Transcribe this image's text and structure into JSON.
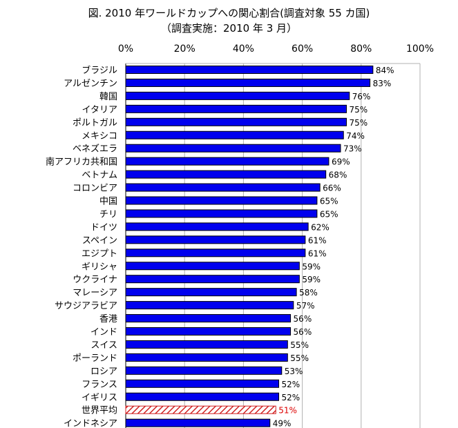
{
  "chart_data": {
    "type": "bar",
    "orientation": "horizontal",
    "title": "図. 2010 年ワールドカップへの関心割合(調査対象 55 カ国)",
    "subtitle": "（調査実施：2010 年 3 月）",
    "xlim": [
      0,
      100
    ],
    "x_ticks": [
      "0%",
      "20%",
      "40%",
      "60%",
      "80%",
      "100%"
    ],
    "axis_position": "top",
    "grid": true,
    "categories": [
      "ブラジル",
      "アルゼンチン",
      "韓国",
      "イタリア",
      "ポルトガル",
      "メキシコ",
      "ベネズエラ",
      "南アフリカ共和国",
      "ベトナム",
      "コロンビア",
      "中国",
      "チリ",
      "ドイツ",
      "スペイン",
      "エジプト",
      "ギリシャ",
      "ウクライナ",
      "マレーシア",
      "サウジアラビア",
      "香港",
      "インド",
      "スイス",
      "ポーランド",
      "ロシア",
      "フランス",
      "イギリス",
      "世界平均",
      "インドネシア"
    ],
    "values": [
      84,
      83,
      76,
      75,
      75,
      74,
      73,
      69,
      68,
      66,
      65,
      65,
      62,
      61,
      61,
      59,
      59,
      58,
      57,
      56,
      56,
      55,
      55,
      53,
      52,
      52,
      51,
      49
    ],
    "labels": [
      "84%",
      "83%",
      "76%",
      "75%",
      "75%",
      "74%",
      "73%",
      "69%",
      "68%",
      "66%",
      "65%",
      "65%",
      "62%",
      "61%",
      "61%",
      "59%",
      "59%",
      "58%",
      "57%",
      "56%",
      "56%",
      "55%",
      "55%",
      "53%",
      "52%",
      "52%",
      "51%",
      "49%"
    ],
    "highlight_category": "世界平均",
    "colors": {
      "bar": "#0000ee",
      "highlight": "#d02020",
      "highlight_label": "#dd0000",
      "grid": "#b0b0b0"
    }
  }
}
